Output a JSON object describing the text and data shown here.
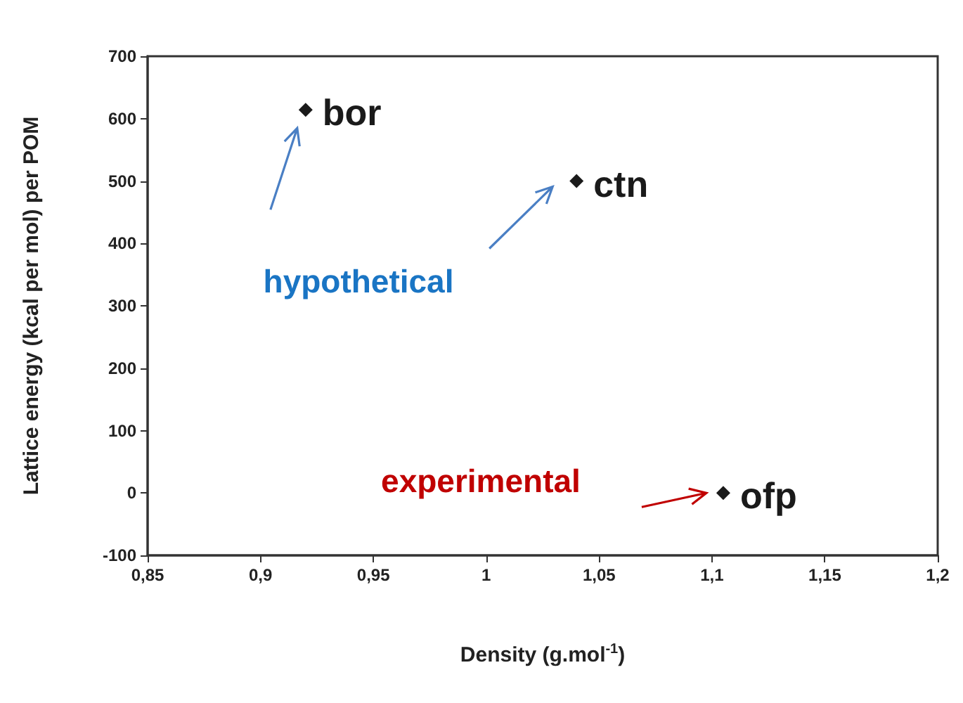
{
  "chart_data": {
    "type": "scatter",
    "xlabel": "Density (g.mol$^{-1}$)",
    "ylabel": "Lattice energy (kcal per mol) per POM",
    "x": [
      0.92,
      1.04,
      1.105
    ],
    "values": [
      614,
      500,
      0
    ],
    "color": "#1a1a1a",
    "marker": "diamond",
    "grid": false,
    "xlim": [
      0.85,
      1.2
    ],
    "xticks": [
      {
        "value": 0.85,
        "label": "0,85"
      },
      {
        "value": 0.9,
        "label": "0,9"
      },
      {
        "value": 0.95,
        "label": "0,95"
      },
      1,
      {
        "value": 1.05,
        "label": "1,05"
      },
      {
        "value": 1.1,
        "label": "1,1"
      },
      {
        "value": 1.15,
        "label": "1,15"
      },
      {
        "value": 1.2,
        "label": "1,2"
      }
    ],
    "ylim": [
      -100,
      700
    ],
    "yticks": [
      -100,
      0,
      100,
      200,
      300,
      400,
      500,
      600,
      700
    ],
    "annotations": [
      {
        "text": "bor",
        "x": 0.92,
        "y": 614
      },
      {
        "text": "ctn",
        "x": 1.04,
        "y": 500
      },
      {
        "text": "ofp",
        "x": 1.105,
        "y": 0
      },
      "hypothetical",
      "experimental"
    ]
  }
}
